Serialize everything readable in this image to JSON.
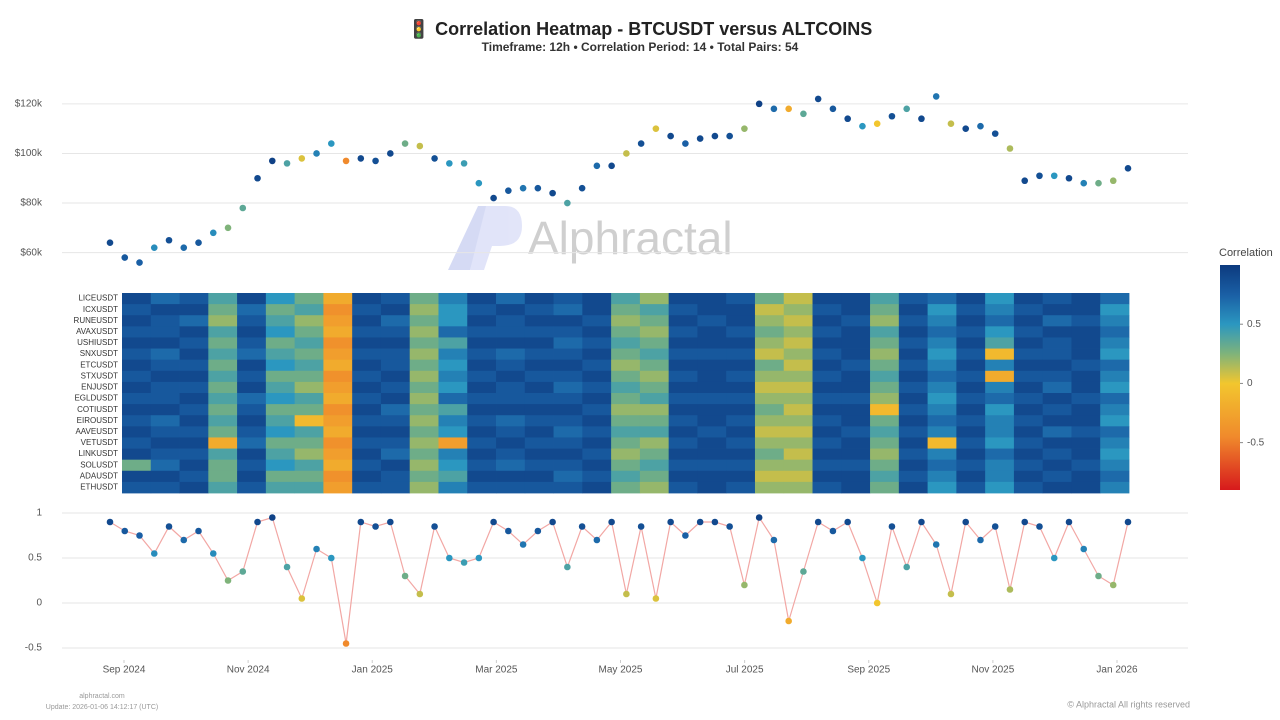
{
  "header": {
    "title": "🚦 Correlation Heatmap - BTCUSDT versus ALTCOINS",
    "subtitle": "Timeframe: 12h • Correlation Period: 14  • Total Pairs: 54"
  },
  "watermark": "Alphractal",
  "footer": {
    "site": "alphractal.com",
    "update": "Update: 2026-01-06 14:12:17 (UTC)",
    "rights": "© Alphractal All rights reserved"
  },
  "chart_data": [
    {
      "type": "scatter",
      "values": [
        64000,
        58000,
        56000,
        62000,
        65000,
        62000,
        64000,
        68000,
        70000,
        78000,
        90000,
        97000,
        96000,
        98000,
        100000,
        104000,
        97000,
        98000,
        97000,
        100000,
        104000,
        103000,
        98000,
        96000,
        96000,
        88000,
        82000,
        85000,
        86000,
        86000,
        84000,
        80000,
        86000,
        95000,
        95000,
        100000,
        104000,
        110000,
        107000,
        104000,
        106000,
        107000,
        107000,
        110000,
        120000,
        118000,
        118000,
        116000,
        122000,
        118000,
        114000,
        111000,
        112000,
        115000,
        118000,
        114000,
        123000,
        112000,
        110000,
        111000,
        108000,
        102000,
        89000,
        91000,
        91000,
        90000,
        88000,
        88000,
        89000,
        94000
      ],
      "ylim": [
        53000,
        127000
      ],
      "yticks": [
        {
          "value": 60000,
          "label": "$60k"
        },
        {
          "value": 80000,
          "label": "$80k"
        },
        {
          "value": 100000,
          "label": "$100k"
        },
        {
          "value": 120000,
          "label": "$120k"
        }
      ],
      "grid": true
    },
    {
      "type": "heatmap",
      "rows": [
        "LICEUSDT",
        "ICXUSDT",
        "RUNEUSDT",
        "AVAXUSDT",
        "USHIUSDT",
        "SNXUSDT",
        "ETCUSDT",
        "STXUSDT",
        "ENJUSDT",
        "EGLDUSDT",
        "COTIUSDT",
        "EIROUSDT",
        "AAVEUSDT",
        "VETUSDT",
        "LINKUSDT",
        "SOLUSDT",
        "ADAUSDT",
        "ETHUSDT"
      ],
      "z": [
        [
          0.9,
          0.7,
          0.8,
          0.4,
          0.9,
          0.5,
          0.3,
          -0.2,
          0.9,
          0.8,
          0.3,
          0.6,
          0.9,
          0.7,
          0.9,
          0.8,
          0.9,
          0.4,
          0.2,
          0.9,
          0.9,
          0.8,
          0.3,
          0.1,
          0.9,
          0.9,
          0.4,
          0.8,
          0.7,
          0.9,
          0.5,
          0.9,
          0.8,
          0.9,
          0.7
        ],
        [
          0.8,
          0.9,
          0.9,
          0.3,
          0.7,
          0.3,
          0.4,
          -0.4,
          0.8,
          0.9,
          0.2,
          0.5,
          0.8,
          0.9,
          0.8,
          0.7,
          0.9,
          0.3,
          0.4,
          0.8,
          0.9,
          0.9,
          0.1,
          0.2,
          0.8,
          0.9,
          0.3,
          0.9,
          0.5,
          0.8,
          0.6,
          0.8,
          0.9,
          0.9,
          0.5
        ],
        [
          0.9,
          0.8,
          0.7,
          0.2,
          0.8,
          0.4,
          0.2,
          -0.3,
          0.9,
          0.7,
          0.3,
          0.5,
          0.9,
          0.8,
          0.9,
          0.9,
          0.8,
          0.2,
          0.3,
          0.9,
          0.8,
          0.9,
          0.2,
          0.1,
          0.9,
          0.8,
          0.2,
          0.8,
          0.6,
          0.9,
          0.7,
          0.9,
          0.7,
          0.8,
          0.6
        ],
        [
          0.8,
          0.8,
          0.9,
          0.4,
          0.9,
          0.5,
          0.3,
          -0.2,
          0.8,
          0.8,
          0.2,
          0.7,
          0.8,
          0.8,
          0.8,
          0.8,
          0.9,
          0.3,
          0.2,
          0.8,
          0.9,
          0.8,
          0.3,
          0.2,
          0.8,
          0.9,
          0.4,
          0.9,
          0.7,
          0.8,
          0.5,
          0.8,
          0.9,
          0.9,
          0.7
        ],
        [
          0.9,
          0.9,
          0.8,
          0.3,
          0.8,
          0.3,
          0.4,
          -0.4,
          0.9,
          0.9,
          0.3,
          0.4,
          0.9,
          0.9,
          0.9,
          0.7,
          0.8,
          0.4,
          0.3,
          0.9,
          0.9,
          0.9,
          0.2,
          0.1,
          0.9,
          0.9,
          0.3,
          0.8,
          0.6,
          0.9,
          0.4,
          0.9,
          0.8,
          0.9,
          0.6
        ],
        [
          0.8,
          0.7,
          0.9,
          0.4,
          0.7,
          0.4,
          0.3,
          -0.3,
          0.8,
          0.8,
          0.2,
          0.6,
          0.8,
          0.7,
          0.8,
          0.8,
          0.9,
          0.3,
          0.4,
          0.8,
          0.8,
          0.8,
          0.1,
          0.2,
          0.8,
          0.9,
          0.2,
          0.9,
          0.5,
          0.8,
          -0.1,
          0.8,
          0.8,
          0.9,
          0.5
        ],
        [
          0.9,
          0.8,
          0.8,
          0.3,
          0.9,
          0.5,
          0.4,
          -0.2,
          0.9,
          0.8,
          0.3,
          0.5,
          0.9,
          0.8,
          0.9,
          0.9,
          0.8,
          0.2,
          0.3,
          0.9,
          0.9,
          0.9,
          0.3,
          0.1,
          0.9,
          0.8,
          0.3,
          0.8,
          0.6,
          0.9,
          0.6,
          0.9,
          0.9,
          0.8,
          0.7
        ],
        [
          0.8,
          0.9,
          0.9,
          0.4,
          0.8,
          0.3,
          0.3,
          -0.4,
          0.8,
          0.9,
          0.2,
          0.6,
          0.8,
          0.9,
          0.8,
          0.8,
          0.9,
          0.3,
          0.2,
          0.8,
          0.9,
          0.8,
          0.2,
          0.2,
          0.8,
          0.9,
          0.4,
          0.9,
          0.7,
          0.8,
          -0.2,
          0.8,
          0.8,
          0.9,
          0.6
        ],
        [
          0.9,
          0.8,
          0.8,
          0.3,
          0.9,
          0.4,
          0.2,
          -0.3,
          0.9,
          0.8,
          0.3,
          0.5,
          0.9,
          0.8,
          0.9,
          0.7,
          0.8,
          0.4,
          0.3,
          0.9,
          0.9,
          0.9,
          0.1,
          0.1,
          0.9,
          0.9,
          0.3,
          0.8,
          0.6,
          0.9,
          0.6,
          0.9,
          0.7,
          0.9,
          0.5
        ],
        [
          0.8,
          0.8,
          0.9,
          0.4,
          0.7,
          0.5,
          0.4,
          -0.2,
          0.8,
          0.9,
          0.2,
          0.7,
          0.8,
          0.8,
          0.8,
          0.8,
          0.9,
          0.3,
          0.4,
          0.8,
          0.8,
          0.8,
          0.2,
          0.2,
          0.8,
          0.8,
          0.2,
          0.9,
          0.5,
          0.8,
          0.7,
          0.8,
          0.9,
          0.8,
          0.7
        ],
        [
          0.9,
          0.9,
          0.8,
          0.3,
          0.8,
          0.3,
          0.3,
          -0.4,
          0.9,
          0.7,
          0.3,
          0.4,
          0.9,
          0.9,
          0.9,
          0.9,
          0.8,
          0.2,
          0.2,
          0.9,
          0.9,
          0.9,
          0.3,
          0.1,
          0.9,
          0.9,
          -0.1,
          0.8,
          0.6,
          0.9,
          0.5,
          0.9,
          0.8,
          0.9,
          0.6
        ],
        [
          0.8,
          0.7,
          0.9,
          0.4,
          0.9,
          0.4,
          -0.1,
          -0.3,
          0.8,
          0.8,
          0.2,
          0.6,
          0.8,
          0.7,
          0.8,
          0.8,
          0.9,
          0.3,
          0.3,
          0.8,
          0.9,
          0.8,
          0.2,
          0.2,
          0.8,
          0.9,
          0.3,
          0.9,
          0.7,
          0.8,
          0.6,
          0.8,
          0.9,
          0.9,
          0.5
        ],
        [
          0.9,
          0.8,
          0.8,
          0.3,
          0.8,
          0.5,
          0.4,
          -0.2,
          0.9,
          0.9,
          0.3,
          0.5,
          0.9,
          0.8,
          0.9,
          0.7,
          0.8,
          0.4,
          0.4,
          0.9,
          0.8,
          0.9,
          0.1,
          0.1,
          0.9,
          0.8,
          0.4,
          0.8,
          0.6,
          0.9,
          0.6,
          0.9,
          0.7,
          0.8,
          0.7
        ],
        [
          0.8,
          0.9,
          0.9,
          -0.2,
          0.7,
          0.3,
          0.3,
          -0.4,
          0.8,
          0.8,
          0.2,
          -0.3,
          0.8,
          0.9,
          0.8,
          0.8,
          0.9,
          0.3,
          0.2,
          0.8,
          0.9,
          0.8,
          0.2,
          0.2,
          0.8,
          0.9,
          0.3,
          0.9,
          -0.1,
          0.8,
          0.5,
          0.8,
          0.9,
          0.9,
          0.6
        ],
        [
          0.9,
          0.8,
          0.8,
          0.4,
          0.9,
          0.4,
          0.2,
          -0.3,
          0.9,
          0.7,
          0.3,
          0.6,
          0.9,
          0.8,
          0.9,
          0.9,
          0.8,
          0.2,
          0.3,
          0.9,
          0.9,
          0.9,
          0.3,
          0.1,
          0.9,
          0.9,
          0.2,
          0.8,
          0.6,
          0.9,
          0.7,
          0.9,
          0.8,
          0.9,
          0.5
        ],
        [
          0.3,
          0.7,
          0.9,
          0.3,
          0.8,
          0.5,
          0.4,
          -0.2,
          0.8,
          0.9,
          0.2,
          0.5,
          0.8,
          0.7,
          0.8,
          0.8,
          0.9,
          0.3,
          0.4,
          0.8,
          0.8,
          0.8,
          0.2,
          0.2,
          0.8,
          0.8,
          0.3,
          0.9,
          0.7,
          0.8,
          0.6,
          0.8,
          0.9,
          0.8,
          0.6
        ],
        [
          0.9,
          0.9,
          0.8,
          0.3,
          0.9,
          0.3,
          0.3,
          -0.4,
          0.9,
          0.8,
          0.3,
          0.4,
          0.9,
          0.9,
          0.9,
          0.7,
          0.8,
          0.4,
          0.3,
          0.9,
          0.9,
          0.9,
          0.1,
          0.1,
          0.9,
          0.9,
          0.4,
          0.8,
          0.6,
          0.9,
          0.6,
          0.9,
          0.8,
          0.9,
          0.7
        ],
        [
          0.8,
          0.8,
          0.9,
          0.4,
          0.8,
          0.4,
          0.4,
          -0.3,
          0.8,
          0.8,
          0.2,
          0.6,
          0.8,
          0.8,
          0.8,
          0.8,
          0.9,
          0.3,
          0.2,
          0.8,
          0.9,
          0.8,
          0.2,
          0.2,
          0.8,
          0.9,
          0.3,
          0.9,
          0.5,
          0.8,
          0.5,
          0.8,
          0.9,
          0.9,
          0.6
        ]
      ],
      "zlim": [
        -0.9,
        1
      ],
      "colorscale": [
        [
          -0.9,
          "#d7191c"
        ],
        [
          -0.45,
          "#f08a2c"
        ],
        [
          0,
          "#f2c62e"
        ],
        [
          0.25,
          "#7fb37a"
        ],
        [
          0.5,
          "#2b97c0"
        ],
        [
          0.75,
          "#1a5fa5"
        ],
        [
          1,
          "#0c3a7e"
        ]
      ],
      "colorbar_title": "Correlation",
      "colorbar_ticks": [
        0.5,
        0,
        -0.5
      ]
    },
    {
      "type": "scatter",
      "values": [
        0.9,
        0.8,
        0.75,
        0.55,
        0.85,
        0.7,
        0.8,
        0.55,
        0.25,
        0.35,
        0.9,
        0.95,
        0.4,
        0.05,
        0.6,
        0.5,
        -0.45,
        0.9,
        0.85,
        0.9,
        0.3,
        0.1,
        0.85,
        0.5,
        0.45,
        0.5,
        0.9,
        0.8,
        0.65,
        0.8,
        0.9,
        0.4,
        0.85,
        0.7,
        0.9,
        0.1,
        0.85,
        0.05,
        0.9,
        0.75,
        0.9,
        0.9,
        0.85,
        0.2,
        0.95,
        0.7,
        -0.2,
        0.35,
        0.9,
        0.8,
        0.9,
        0.5,
        0,
        0.85,
        0.4,
        0.9,
        0.65,
        0.1,
        0.9,
        0.7,
        0.85,
        0.15,
        0.9,
        0.85,
        0.5,
        0.9,
        0.6,
        0.3,
        0.2,
        0.9
      ],
      "ylim": [
        -0.6,
        1.05
      ],
      "yticks": [
        1,
        0.5,
        0,
        -0.5
      ],
      "xticks": [
        {
          "value": "2024-09",
          "label": "Sep 2024"
        },
        {
          "value": "2024-11",
          "label": "Nov 2024"
        },
        {
          "value": "2025-01",
          "label": "Jan 2025"
        },
        {
          "value": "2025-03",
          "label": "Mar 2025"
        },
        {
          "value": "2025-05",
          "label": "May 2025"
        },
        {
          "value": "2025-07",
          "label": "Jul 2025"
        },
        {
          "value": "2025-09",
          "label": "Sep 2025"
        },
        {
          "value": "2025-11",
          "label": "Nov 2025"
        },
        {
          "value": "2026-01",
          "label": "Jan 2026"
        }
      ],
      "line_color": "#f2a7a4",
      "grid": true
    }
  ]
}
